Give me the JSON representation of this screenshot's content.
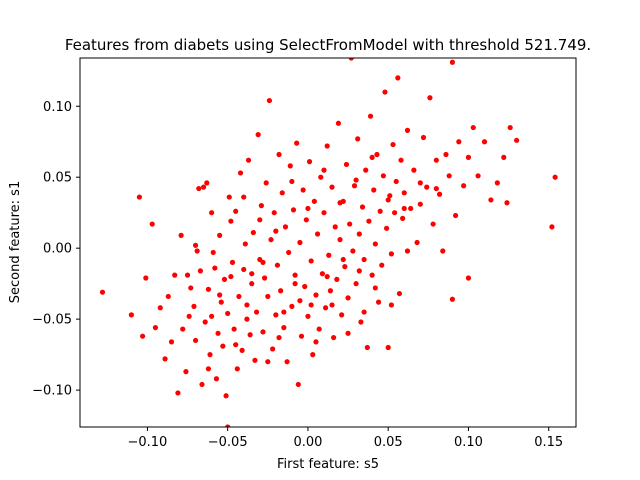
{
  "chart_data": {
    "type": "scatter",
    "title": "Features from diabets using SelectFromModel with threshold 521.749.",
    "xlabel": "First feature: s5",
    "ylabel": "Second feature: s1",
    "xlim": [
      -0.142,
      0.167
    ],
    "ylim": [
      -0.126,
      0.134
    ],
    "xticks": [
      -0.1,
      -0.05,
      0.0,
      0.05,
      0.1,
      0.15
    ],
    "xtick_labels": [
      "−0.10",
      "−0.05",
      "0.00",
      "0.05",
      "0.10",
      "0.15"
    ],
    "yticks": [
      -0.1,
      -0.05,
      0.0,
      0.05,
      0.1
    ],
    "ytick_labels": [
      "−0.10",
      "−0.05",
      "0.00",
      "0.05",
      "0.10"
    ],
    "grid": false,
    "marker_color": "#ff0000",
    "points": [
      [
        -0.128,
        -0.031
      ],
      [
        -0.11,
        -0.047
      ],
      [
        -0.105,
        0.036
      ],
      [
        -0.103,
        -0.062
      ],
      [
        -0.101,
        -0.021
      ],
      [
        -0.097,
        0.017
      ],
      [
        -0.095,
        -0.056
      ],
      [
        -0.092,
        -0.042
      ],
      [
        -0.089,
        -0.078
      ],
      [
        -0.087,
        -0.034
      ],
      [
        -0.085,
        -0.066
      ],
      [
        -0.083,
        -0.019
      ],
      [
        -0.081,
        -0.102
      ],
      [
        -0.079,
        0.009
      ],
      [
        -0.078,
        -0.057
      ],
      [
        -0.076,
        -0.087
      ],
      [
        -0.075,
        -0.019
      ],
      [
        -0.074,
        -0.048
      ],
      [
        -0.073,
        -0.028
      ],
      [
        -0.071,
        -0.041
      ],
      [
        -0.07,
        -0.065
      ],
      [
        -0.069,
        -0.002
      ],
      [
        -0.068,
        0.042
      ],
      [
        -0.067,
        -0.016
      ],
      [
        -0.066,
        -0.096
      ],
      [
        -0.065,
        0.043
      ],
      [
        -0.064,
        -0.052
      ],
      [
        -0.063,
        0.046
      ],
      [
        -0.062,
        -0.029
      ],
      [
        -0.061,
        -0.075
      ],
      [
        -0.06,
        -0.048
      ],
      [
        -0.059,
        -0.003
      ],
      [
        -0.058,
        -0.014
      ],
      [
        -0.057,
        -0.092
      ],
      [
        -0.056,
        -0.06
      ],
      [
        -0.055,
        0.009
      ],
      [
        -0.054,
        -0.038
      ],
      [
        -0.053,
        -0.069
      ],
      [
        -0.052,
        -0.022
      ],
      [
        -0.051,
        -0.104
      ],
      [
        -0.05,
        -0.046
      ],
      [
        -0.05,
        -0.126
      ],
      [
        -0.049,
        0.036
      ],
      [
        -0.048,
        0.019
      ],
      [
        -0.047,
        -0.01
      ],
      [
        -0.046,
        -0.057
      ],
      [
        -0.045,
        0.026
      ],
      [
        -0.044,
        -0.085
      ],
      [
        -0.043,
        -0.034
      ],
      [
        -0.042,
        0.053
      ],
      [
        -0.041,
        -0.072
      ],
      [
        -0.04,
        -0.015
      ],
      [
        -0.039,
        0.003
      ],
      [
        -0.038,
        -0.04
      ],
      [
        -0.037,
        0.062
      ],
      [
        -0.036,
        -0.061
      ],
      [
        -0.035,
        -0.025
      ],
      [
        -0.034,
        0.011
      ],
      [
        -0.033,
        -0.079
      ],
      [
        -0.032,
        -0.045
      ],
      [
        -0.031,
        0.08
      ],
      [
        -0.03,
        -0.008
      ],
      [
        -0.029,
        0.03
      ],
      [
        -0.028,
        -0.059
      ],
      [
        -0.027,
        -0.021
      ],
      [
        -0.026,
        0.046
      ],
      [
        -0.025,
        -0.034
      ],
      [
        -0.024,
        0.104
      ],
      [
        -0.023,
        0.006
      ],
      [
        -0.022,
        -0.071
      ],
      [
        -0.021,
        0.025
      ],
      [
        -0.02,
        -0.047
      ],
      [
        -0.019,
        -0.012
      ],
      [
        -0.018,
        0.066
      ],
      [
        -0.017,
        -0.03
      ],
      [
        -0.016,
        0.039
      ],
      [
        -0.015,
        -0.056
      ],
      [
        -0.014,
        0.015
      ],
      [
        -0.013,
        -0.08
      ],
      [
        -0.012,
        -0.003
      ],
      [
        -0.011,
        0.058
      ],
      [
        -0.01,
        -0.041
      ],
      [
        -0.009,
        0.027
      ],
      [
        -0.008,
        -0.019
      ],
      [
        -0.007,
        0.074
      ],
      [
        -0.006,
        -0.096
      ],
      [
        -0.005,
        0.004
      ],
      [
        -0.004,
        -0.062
      ],
      [
        -0.003,
        0.041
      ],
      [
        -0.002,
        -0.027
      ],
      [
        -0.001,
        0.02
      ],
      [
        0.0,
        -0.048
      ],
      [
        0.001,
        0.061
      ],
      [
        0.002,
        -0.009
      ],
      [
        0.003,
        -0.075
      ],
      [
        0.004,
        0.033
      ],
      [
        0.005,
        -0.033
      ],
      [
        0.006,
        0.01
      ],
      [
        0.007,
        -0.057
      ],
      [
        0.008,
        0.05
      ],
      [
        0.009,
        -0.018
      ],
      [
        0.01,
        0.025
      ],
      [
        0.011,
        -0.042
      ],
      [
        0.012,
        0.072
      ],
      [
        0.013,
        -0.005
      ],
      [
        0.014,
        -0.03
      ],
      [
        0.015,
        0.043
      ],
      [
        0.016,
        -0.063
      ],
      [
        0.017,
        0.015
      ],
      [
        0.018,
        -0.022
      ],
      [
        0.019,
        0.088
      ],
      [
        0.02,
        0.006
      ],
      [
        0.021,
        -0.047
      ],
      [
        0.022,
        0.033
      ],
      [
        0.023,
        -0.013
      ],
      [
        0.024,
        0.059
      ],
      [
        0.025,
        -0.035
      ],
      [
        0.026,
        0.017
      ],
      [
        0.027,
        0.134
      ],
      [
        0.028,
        -0.002
      ],
      [
        0.029,
        0.044
      ],
      [
        0.03,
        -0.025
      ],
      [
        0.031,
        0.077
      ],
      [
        0.032,
        0.01
      ],
      [
        0.033,
        -0.052
      ],
      [
        0.034,
        0.029
      ],
      [
        0.035,
        -0.008
      ],
      [
        0.036,
        0.055
      ],
      [
        0.037,
        -0.07
      ],
      [
        0.038,
        0.019
      ],
      [
        0.039,
        0.093
      ],
      [
        0.04,
        -0.019
      ],
      [
        0.041,
        0.041
      ],
      [
        0.042,
        0.003
      ],
      [
        0.043,
        0.066
      ],
      [
        0.044,
        -0.038
      ],
      [
        0.045,
        0.026
      ],
      [
        0.046,
        -0.012
      ],
      [
        0.047,
        0.051
      ],
      [
        0.048,
        0.11
      ],
      [
        0.049,
        0.014
      ],
      [
        0.05,
        -0.07
      ],
      [
        0.051,
        0.037
      ],
      [
        0.052,
        -0.004
      ],
      [
        0.053,
        0.073
      ],
      [
        0.054,
        0.025
      ],
      [
        0.055,
        0.047
      ],
      [
        0.056,
        0.12
      ],
      [
        0.057,
        -0.032
      ],
      [
        0.058,
        0.062
      ],
      [
        0.059,
        0.021
      ],
      [
        0.06,
        0.039
      ],
      [
        0.062,
        0.083
      ],
      [
        0.064,
        0.028
      ],
      [
        0.066,
        0.055
      ],
      [
        0.068,
        0.004
      ],
      [
        0.07,
        0.031
      ],
      [
        0.072,
        0.078
      ],
      [
        0.074,
        0.043
      ],
      [
        0.076,
        0.106
      ],
      [
        0.078,
        0.017
      ],
      [
        0.08,
        0.062
      ],
      [
        0.082,
        0.038
      ],
      [
        0.084,
        -0.002
      ],
      [
        0.086,
        0.066
      ],
      [
        0.088,
        0.051
      ],
      [
        0.09,
        0.131
      ],
      [
        0.092,
        0.023
      ],
      [
        0.094,
        0.075
      ],
      [
        0.097,
        0.044
      ],
      [
        0.1,
        0.064
      ],
      [
        0.103,
        0.085
      ],
      [
        0.106,
        0.051
      ],
      [
        0.11,
        0.075
      ],
      [
        0.114,
        0.034
      ],
      [
        0.118,
        0.046
      ],
      [
        0.122,
        0.064
      ],
      [
        0.124,
        0.032
      ],
      [
        0.126,
        0.085
      ],
      [
        0.13,
        0.076
      ],
      [
        0.152,
        0.015
      ],
      [
        0.154,
        0.05
      ],
      [
        -0.062,
        -0.085
      ],
      [
        -0.055,
        -0.033
      ],
      [
        -0.045,
        -0.068
      ],
      [
        -0.035,
        -0.018
      ],
      [
        -0.025,
        -0.08
      ],
      [
        -0.015,
        -0.045
      ],
      [
        -0.005,
        -0.037
      ],
      [
        0.005,
        -0.066
      ],
      [
        0.015,
        -0.04
      ],
      [
        0.025,
        -0.06
      ],
      [
        0.035,
        -0.045
      ],
      [
        -0.07,
        0.002
      ],
      [
        -0.06,
        0.025
      ],
      [
        -0.04,
        0.036
      ],
      [
        -0.03,
        0.02
      ],
      [
        -0.02,
        0.012
      ],
      [
        -0.01,
        0.047
      ],
      [
        0.0,
        0.028
      ],
      [
        0.01,
        0.055
      ],
      [
        0.02,
        0.032
      ],
      [
        0.03,
        0.048
      ],
      [
        0.04,
        0.064
      ],
      [
        0.05,
        0.034
      ],
      [
        0.06,
        0.028
      ],
      [
        0.07,
        0.046
      ],
      [
        0.08,
        0.042
      ],
      [
        -0.048,
        -0.02
      ],
      [
        -0.038,
        -0.05
      ],
      [
        -0.028,
        -0.01
      ],
      [
        -0.018,
        -0.063
      ],
      [
        -0.008,
        -0.025
      ],
      [
        0.002,
        -0.04
      ],
      [
        0.012,
        -0.02
      ],
      [
        0.022,
        -0.008
      ],
      [
        0.032,
        -0.016
      ],
      [
        0.042,
        -0.028
      ],
      [
        0.052,
        -0.04
      ],
      [
        0.062,
        -0.002
      ],
      [
        0.09,
        -0.036
      ],
      [
        0.1,
        -0.021
      ]
    ]
  }
}
